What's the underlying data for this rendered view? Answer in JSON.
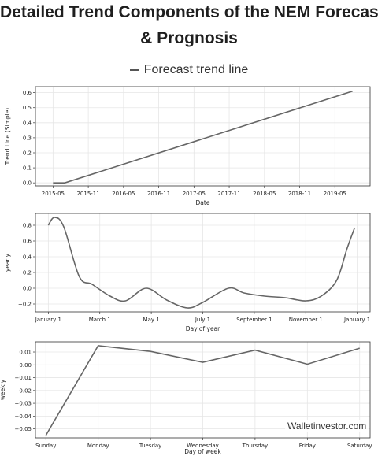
{
  "title_line1": "Detailed Trend Components of the NEM Forecast",
  "title_line2": "& Prognosis",
  "legend_label": "Forecast trend line",
  "watermark": "Walletinvestor.com",
  "colors": {
    "line": "#666666",
    "grid": "#e6e6e6",
    "frame": "#333333"
  },
  "chart_data": [
    {
      "type": "line",
      "xlabel": "Date",
      "ylabel": "Trend Line (Simple)",
      "ylim": [
        -0.02,
        0.64
      ],
      "yticks": [
        0.0,
        0.1,
        0.2,
        0.3,
        0.4,
        0.5,
        0.6
      ],
      "yticklabels": [
        "0.0",
        "0.1",
        "0.2",
        "0.3",
        "0.4",
        "0.5",
        "0.6"
      ],
      "xticklabels": [
        "2015-05",
        "2015-11",
        "2016-05",
        "2016-11",
        "2017-05",
        "2017-11",
        "2018-05",
        "2018-11",
        "2019-05"
      ],
      "series": [
        {
          "x": [
            "2015-05",
            "2015-07",
            "2019-08"
          ],
          "values": [
            0.0,
            0.0,
            0.61
          ]
        }
      ],
      "grid": true
    },
    {
      "type": "line",
      "xlabel": "Day of year",
      "ylabel": "yearly",
      "ylim": [
        -0.3,
        0.95
      ],
      "yticks": [
        -0.2,
        0.0,
        0.2,
        0.4,
        0.6,
        0.8
      ],
      "yticklabels": [
        "−0.2",
        "0.0",
        "0.2",
        "0.4",
        "0.6",
        "0.8"
      ],
      "xticklabels": [
        "January 1",
        "March 1",
        "May 1",
        "July 1",
        "September 1",
        "November 1",
        "January 1"
      ],
      "series": [
        {
          "x": [
            0,
            0.12,
            0.3,
            0.6,
            0.85,
            1.2,
            1.5,
            1.9,
            2.3,
            2.7,
            3.0,
            3.5,
            3.8,
            4.2,
            4.6,
            5.0,
            5.3,
            5.6,
            5.8,
            5.95
          ],
          "values": [
            0.8,
            0.9,
            0.78,
            0.15,
            0.05,
            -0.1,
            -0.16,
            0.0,
            -0.15,
            -0.25,
            -0.18,
            0.0,
            -0.06,
            -0.1,
            -0.12,
            -0.16,
            -0.1,
            0.1,
            0.5,
            0.77
          ]
        }
      ],
      "grid": true
    },
    {
      "type": "line",
      "xlabel": "Day of week",
      "ylabel": "weekly",
      "ylim": [
        -0.057,
        0.018
      ],
      "yticks": [
        -0.05,
        -0.04,
        -0.03,
        -0.02,
        -0.01,
        0.0,
        0.01
      ],
      "yticklabels": [
        "−0.05",
        "−0.04",
        "−0.03",
        "−0.02",
        "−0.01",
        "0.00",
        "0.01"
      ],
      "categories": [
        "Sunday",
        "Monday",
        "Tuesday",
        "Wednesday",
        "Thursday",
        "Friday",
        "Saturday"
      ],
      "series": [
        {
          "values": [
            -0.055,
            0.015,
            0.0105,
            0.002,
            0.0115,
            0.0005,
            0.013
          ]
        }
      ],
      "grid": true
    }
  ]
}
